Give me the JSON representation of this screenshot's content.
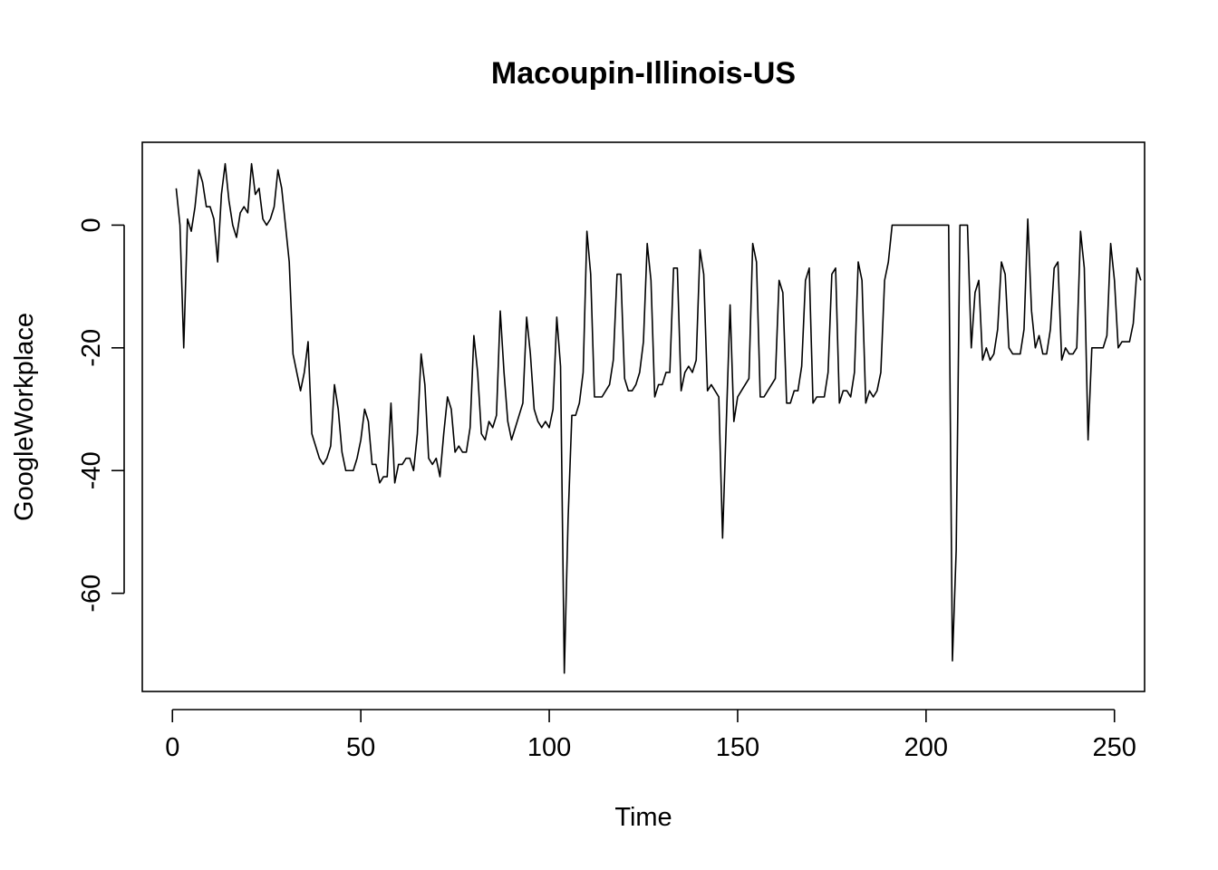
{
  "chart_data": {
    "type": "line",
    "title": "Macoupin-Illinois-US",
    "xlabel": "Time",
    "ylabel": "GoogleWorkplace",
    "xlim": [
      -8,
      258
    ],
    "ylim": [
      -76,
      13.5
    ],
    "xticks": [
      0,
      50,
      100,
      150,
      200,
      250
    ],
    "yticks": [
      0,
      -20,
      -40,
      -60
    ],
    "grid": false,
    "series": [
      {
        "color": "#000000",
        "values": [
          6,
          0,
          -20,
          1,
          -1,
          3,
          9,
          7,
          3,
          3,
          1,
          -6,
          5,
          10,
          4,
          0,
          -2,
          2,
          3,
          2,
          10,
          5,
          6,
          1,
          0,
          1,
          3,
          9,
          6,
          0,
          -6,
          -21,
          -24,
          -27,
          -24,
          -19,
          -34,
          -36,
          -38,
          -39,
          -38,
          -36,
          -26,
          -30,
          -37,
          -40,
          -40,
          -40,
          -38,
          -35,
          -30,
          -32,
          -39,
          -39,
          -42,
          -41,
          -41,
          -29,
          -42,
          -39,
          -39,
          -38,
          -38,
          -40,
          -34,
          -21,
          -26,
          -38,
          -39,
          -38,
          -41,
          -34,
          -28,
          -30,
          -37,
          -36,
          -37,
          -37,
          -33,
          -18,
          -24,
          -34,
          -35,
          -32,
          -33,
          -31,
          -14,
          -24,
          -32,
          -35,
          -33,
          -31,
          -29,
          -15,
          -21,
          -30,
          -32,
          -33,
          -32,
          -33,
          -30,
          -15,
          -23,
          -73,
          -48,
          -31,
          -31,
          -29,
          -24,
          -1,
          -8,
          -28,
          -28,
          -28,
          -27,
          -26,
          -22,
          -8,
          -8,
          -25,
          -27,
          -27,
          -26,
          -24,
          -19,
          -3,
          -9,
          -28,
          -26,
          -26,
          -24,
          -24,
          -7,
          -7,
          -27,
          -24,
          -23,
          -24,
          -22,
          -4,
          -8,
          -27,
          -26,
          -27,
          -28,
          -51,
          -32,
          -13,
          -32,
          -28,
          -27,
          -26,
          -25,
          -3,
          -6,
          -28,
          -28,
          -27,
          -26,
          -25,
          -9,
          -11,
          -29,
          -29,
          -27,
          -27,
          -23,
          -9,
          -7,
          -29,
          -28,
          -28,
          -28,
          -24,
          -8,
          -7,
          -29,
          -27,
          -27,
          -28,
          -24,
          -6,
          -9,
          -29,
          -27,
          -28,
          -27,
          -24,
          -9,
          -6,
          0,
          0,
          0,
          0,
          0,
          0,
          0,
          0,
          0,
          0,
          0,
          0,
          0,
          0,
          0,
          0,
          -71,
          -53,
          0,
          0,
          0,
          -20,
          -11,
          -9,
          -22,
          -20,
          -22,
          -21,
          -17,
          -6,
          -8,
          -20,
          -21,
          -21,
          -21,
          -17,
          1,
          -14,
          -20,
          -18,
          -21,
          -21,
          -17,
          -7,
          -6,
          -22,
          -20,
          -21,
          -21,
          -20,
          -1,
          -7,
          -35,
          -20,
          -20,
          -20,
          -20,
          -18,
          -3,
          -9,
          -20,
          -19,
          -19,
          -19,
          -16,
          -7,
          -9
        ]
      }
    ]
  }
}
